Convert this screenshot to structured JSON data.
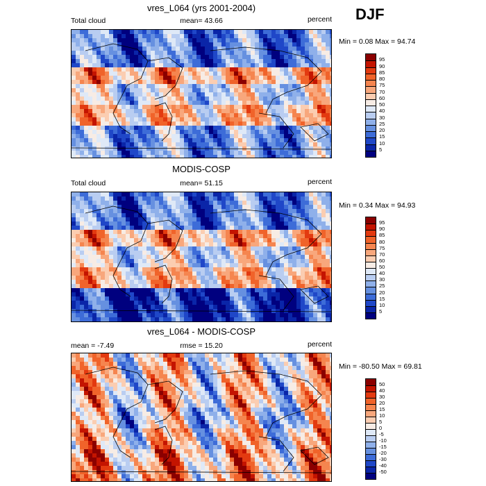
{
  "season": "DJF",
  "panels": [
    {
      "title": "vres_L064 (yrs 2001-2004)",
      "left_label": "Total cloud",
      "center_label": "mean=  43.66",
      "right_label": "percent",
      "minmax": "Min =   0.08 Max =  94.74",
      "kind": "model",
      "colorbar": {
        "labels": [
          "95",
          "90",
          "85",
          "80",
          "75",
          "70",
          "60",
          "50",
          "40",
          "30",
          "25",
          "20",
          "15",
          "10",
          "5"
        ],
        "colors": [
          "#8b0000",
          "#c41400",
          "#e33a10",
          "#f0632a",
          "#f5854f",
          "#f8a77c",
          "#fbcdb1",
          "#f7ece5",
          "#dfe9f7",
          "#b9cdf1",
          "#8fb0ea",
          "#6690e0",
          "#3d6cd8",
          "#1f47c8",
          "#0a25a8",
          "#00007f"
        ]
      }
    },
    {
      "title": "MODIS-COSP",
      "left_label": "Total cloud",
      "center_label": "mean=  51.15",
      "right_label": "percent",
      "minmax": "Min =   0.34 Max =  94.93",
      "kind": "obs",
      "colorbar": {
        "labels": [
          "95",
          "90",
          "85",
          "80",
          "75",
          "70",
          "60",
          "50",
          "40",
          "30",
          "25",
          "20",
          "15",
          "10",
          "5"
        ],
        "colors": [
          "#8b0000",
          "#c41400",
          "#e33a10",
          "#f0632a",
          "#f5854f",
          "#f8a77c",
          "#fbcdb1",
          "#f7ece5",
          "#dfe9f7",
          "#b9cdf1",
          "#8fb0ea",
          "#6690e0",
          "#3d6cd8",
          "#1f47c8",
          "#0a25a8",
          "#00007f"
        ]
      }
    },
    {
      "title": "vres_L064 - MODIS-COSP",
      "left_label": "mean =  -7.49",
      "center_label": "rmse =  15.20",
      "right_label": "percent",
      "minmax": "Min = -80.50 Max =  69.81",
      "kind": "diff",
      "colorbar": {
        "labels": [
          "50",
          "40",
          "30",
          "20",
          "15",
          "10",
          "5",
          "0",
          "-5",
          "-10",
          "-15",
          "-20",
          "-30",
          "-40",
          "-50"
        ],
        "colors": [
          "#8b0000",
          "#c41400",
          "#e33a10",
          "#f0632a",
          "#f5854f",
          "#f8a77c",
          "#fbcdb1",
          "#f7ece5",
          "#dfe9f7",
          "#b9cdf1",
          "#8fb0ea",
          "#6690e0",
          "#3d6cd8",
          "#1f47c8",
          "#0a25a8",
          "#00007f"
        ]
      }
    }
  ]
}
